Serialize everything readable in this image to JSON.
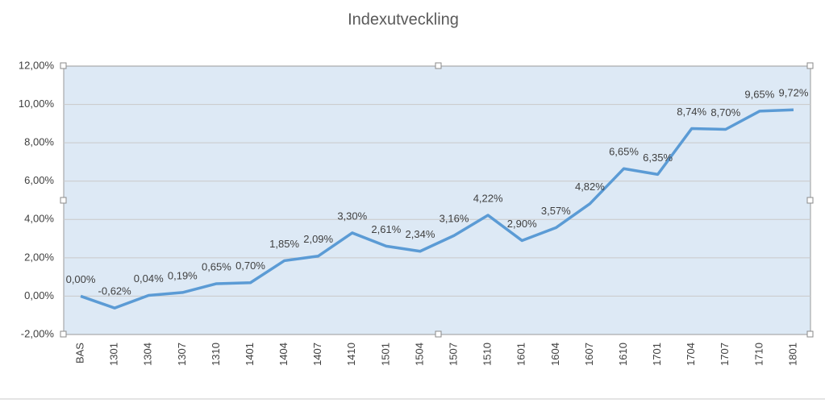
{
  "chart_data": {
    "type": "line",
    "title": "Indexutveckling",
    "categories": [
      "BAS",
      "1301",
      "1304",
      "1307",
      "1310",
      "1401",
      "1404",
      "1407",
      "1410",
      "1501",
      "1504",
      "1507",
      "1510",
      "1601",
      "1604",
      "1607",
      "1610",
      "1701",
      "1704",
      "1707",
      "1710",
      "1801"
    ],
    "values": [
      0,
      -0.62,
      0.04,
      0.19,
      0.65,
      0.7,
      1.85,
      2.09,
      3.3,
      2.61,
      2.34,
      3.16,
      4.22,
      2.9,
      3.57,
      4.82,
      6.65,
      6.35,
      8.74,
      8.7,
      9.65,
      9.72
    ],
    "value_labels": [
      "0,00%",
      "-0,62%",
      "0,04%",
      "0,19%",
      "0,65%",
      "0,70%",
      "1,85%",
      "2,09%",
      "3,30%",
      "2,61%",
      "2,34%",
      "3,16%",
      "4,22%",
      "2,90%",
      "3,57%",
      "4,82%",
      "6,65%",
      "6,35%",
      "8,74%",
      "8,70%",
      "9,65%",
      "9,72%"
    ],
    "color": "#5b9bd5",
    "ylim": [
      -2,
      12
    ],
    "yticks": [
      {
        "value": -2,
        "label": "-2,00%"
      },
      {
        "value": 0,
        "label": "0,00%"
      },
      {
        "value": 2,
        "label": "2,00%"
      },
      {
        "value": 4,
        "label": "4,00%"
      },
      {
        "value": 6,
        "label": "6,00%"
      },
      {
        "value": 8,
        "label": "8,00%"
      },
      {
        "value": 10,
        "label": "10,00%"
      },
      {
        "value": 12,
        "label": "12,00%"
      }
    ],
    "grid": true
  }
}
